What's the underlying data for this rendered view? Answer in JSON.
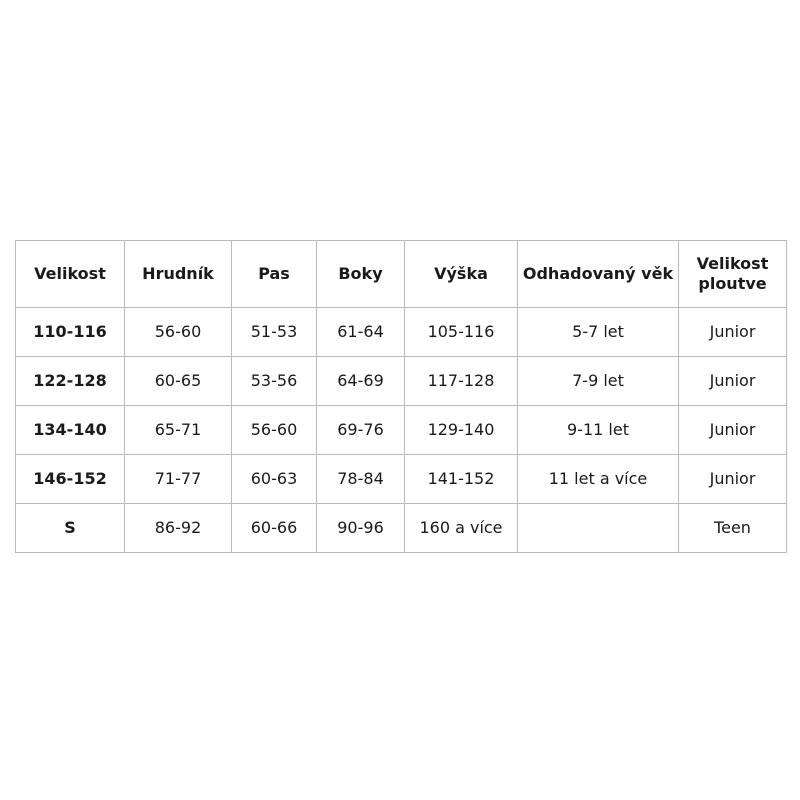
{
  "table": {
    "name": "size-chart",
    "columns": [
      "Velikost",
      "Hrudník",
      "Pas",
      "Boky",
      "Výška",
      "Odhadovaný věk",
      "Velikost ploutve"
    ],
    "rows": [
      [
        "110-116",
        "56-60",
        "51-53",
        "61-64",
        "105-116",
        "5-7 let",
        "Junior"
      ],
      [
        "122-128",
        "60-65",
        "53-56",
        "64-69",
        "117-128",
        "7-9 let",
        "Junior"
      ],
      [
        "134-140",
        "65-71",
        "56-60",
        "69-76",
        "129-140",
        "9-11 let",
        "Junior"
      ],
      [
        "146-152",
        "71-77",
        "60-63",
        "78-84",
        "141-152",
        "11 let a více",
        "Junior"
      ],
      [
        "S",
        "86-92",
        "60-66",
        "90-96",
        "160 a více",
        "",
        "Teen"
      ]
    ]
  },
  "colors": {
    "background": "#ffffff",
    "border": "#b9b9b9",
    "text": "#1a1a1a"
  }
}
